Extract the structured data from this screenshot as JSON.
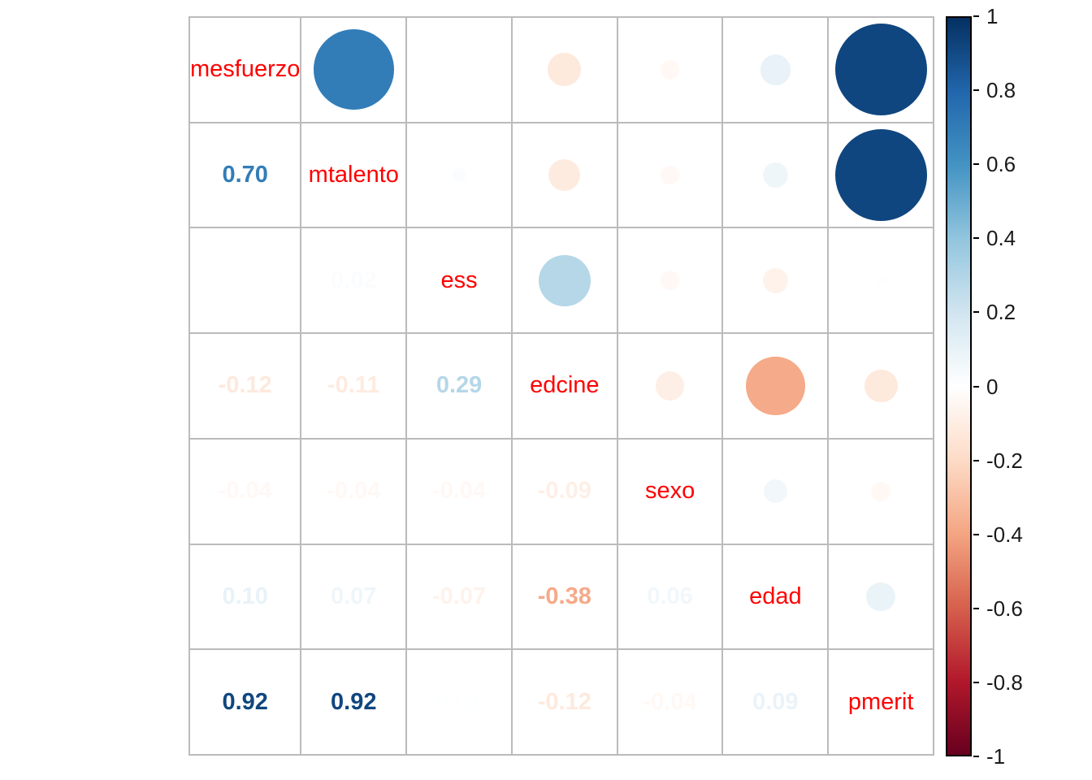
{
  "chart_data": {
    "type": "heatmap",
    "subtype": "correlogram",
    "layout": {
      "upper_triangle": "circle",
      "lower_triangle": "number",
      "diagonal": "variable-name",
      "legend_position": "right",
      "grid": true
    },
    "variables": [
      "mesfuerzo",
      "mtalento",
      "ess",
      "edcine",
      "sexo",
      "edad",
      "pmerit"
    ],
    "matrix": [
      [
        1.0,
        0.7,
        0.0,
        -0.12,
        -0.04,
        0.1,
        0.92
      ],
      [
        0.7,
        1.0,
        0.02,
        -0.11,
        -0.04,
        0.07,
        0.92
      ],
      [
        0.0,
        0.02,
        1.0,
        0.29,
        -0.04,
        -0.07,
        0.01
      ],
      [
        -0.12,
        -0.11,
        0.29,
        1.0,
        -0.09,
        -0.38,
        -0.12
      ],
      [
        -0.04,
        -0.04,
        -0.04,
        -0.09,
        1.0,
        0.06,
        -0.04
      ],
      [
        0.1,
        0.07,
        -0.07,
        -0.38,
        0.06,
        1.0,
        0.09
      ],
      [
        0.92,
        0.92,
        0.01,
        -0.12,
        -0.04,
        0.09,
        1.0
      ]
    ],
    "colorbar": {
      "min": -1,
      "max": 1,
      "ticks": [
        {
          "label": "1",
          "value": 1.0
        },
        {
          "label": "0.8",
          "value": 0.8
        },
        {
          "label": "0.6",
          "value": 0.6
        },
        {
          "label": "0.4",
          "value": 0.4
        },
        {
          "label": "0.2",
          "value": 0.2
        },
        {
          "label": "0",
          "value": 0.0
        },
        {
          "label": "-0.2",
          "value": -0.2
        },
        {
          "label": "-0.4",
          "value": -0.4
        },
        {
          "label": "-0.6",
          "value": -0.6
        },
        {
          "label": "-0.8",
          "value": -0.8
        },
        {
          "label": "-1",
          "value": -1.0
        }
      ]
    },
    "palette_neg_to_pos": [
      "#67001F",
      "#B2182B",
      "#D6604D",
      "#F4A582",
      "#FDDBC7",
      "#FFFFFF",
      "#D1E5F0",
      "#92C5DE",
      "#4393C3",
      "#2166AC",
      "#053061"
    ],
    "colors": {
      "variable_label": "#FF0000",
      "grid": "#BBBBBB",
      "colorbar_border": "#000000",
      "tick_label": "#1A1A1A",
      "background": "#FFFFFF"
    }
  }
}
